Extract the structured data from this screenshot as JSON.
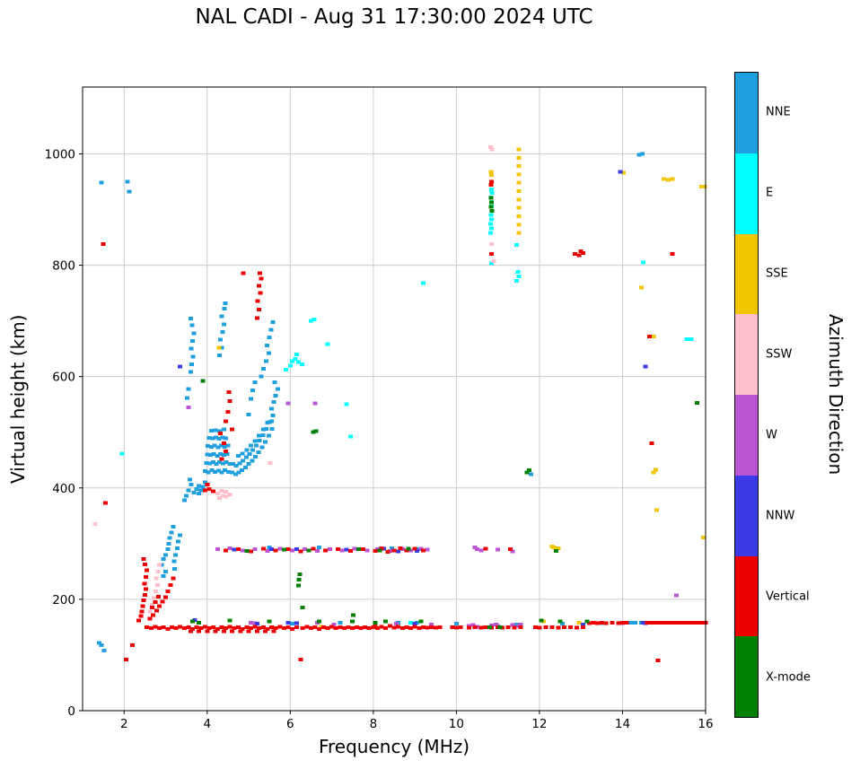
{
  "colorbar": {
    "label": "Azimuth Direction",
    "entries": [
      {
        "label": "NNE",
        "color": "#1f9fdd"
      },
      {
        "label": "E",
        "color": "#00ffff"
      },
      {
        "label": "SSE",
        "color": "#f2c500"
      },
      {
        "label": "SSW",
        "color": "#ffc0cb"
      },
      {
        "label": "W",
        "color": "#ba55d3"
      },
      {
        "label": "NNW",
        "color": "#3a3ae6"
      },
      {
        "label": "Vertical",
        "color": "#ee0000"
      },
      {
        "label": "X-mode",
        "color": "#008000"
      }
    ]
  },
  "chart_data": {
    "type": "scatter",
    "title": "NAL CADI - Aug 31 17:30:00 2024 UTC",
    "xlabel": "Frequency (MHz)",
    "ylabel": "Virtual height (km)",
    "xlim": [
      1,
      16
    ],
    "ylim": [
      0,
      1120
    ],
    "x_ticks": [
      2,
      4,
      6,
      8,
      10,
      12,
      14,
      16
    ],
    "y_ticks": [
      0,
      200,
      400,
      600,
      800,
      1000
    ],
    "grid": true,
    "legend_position": "right-colorbar",
    "marker": "square",
    "series": [
      {
        "name": "NNE",
        "color": "#1f9fdd",
        "pts": [
          1.45,
          948,
          2.08,
          950,
          2.12,
          932,
          1.4,
          122,
          1.52,
          108,
          1.45,
          118,
          2.9,
          262,
          2.95,
          272,
          3.0,
          280,
          3.05,
          290,
          3.08,
          300,
          3.1,
          310,
          3.14,
          320,
          3.18,
          330,
          3.2,
          268,
          3.24,
          280,
          3.28,
          292,
          3.3,
          304,
          3.34,
          315,
          3.22,
          255,
          3.0,
          250,
          2.95,
          242,
          3.45,
          378,
          3.5,
          386,
          3.55,
          396,
          3.62,
          406,
          3.68,
          392,
          3.58,
          415,
          3.75,
          398,
          3.8,
          404,
          3.85,
          396,
          3.9,
          402,
          3.95,
          410,
          3.8,
          390,
          3.95,
          430,
          4.03,
          428,
          4.11,
          432,
          4.19,
          429,
          4.27,
          431,
          4.35,
          428,
          4.43,
          432,
          4.51,
          429,
          3.98,
          445,
          4.06,
          444,
          4.14,
          446,
          4.22,
          443,
          4.3,
          446,
          4.38,
          444,
          4.46,
          446,
          4.54,
          443,
          4.0,
          460,
          4.08,
          459,
          4.16,
          461,
          4.24,
          458,
          4.32,
          461,
          4.4,
          459,
          4.48,
          461,
          4.02,
          475,
          4.1,
          474,
          4.18,
          476,
          4.26,
          473,
          4.34,
          476,
          4.42,
          474,
          4.5,
          476,
          4.05,
          490,
          4.13,
          489,
          4.21,
          491,
          4.29,
          488,
          4.37,
          491,
          4.45,
          489,
          4.1,
          503,
          4.2,
          504,
          4.3,
          502,
          4.4,
          505,
          4.6,
          428,
          4.68,
          425,
          4.76,
          428,
          4.84,
          432,
          4.92,
          437,
          5.0,
          443,
          5.08,
          449,
          5.16,
          456,
          5.24,
          464,
          5.32,
          473,
          5.4,
          483,
          5.48,
          494,
          5.56,
          506,
          4.62,
          443,
          4.7,
          440,
          4.78,
          444,
          4.86,
          449,
          4.94,
          455,
          5.02,
          461,
          5.1,
          468,
          5.18,
          476,
          5.26,
          485,
          5.34,
          495,
          5.42,
          506,
          5.5,
          518,
          5.58,
          530,
          4.75,
          458,
          4.85,
          462,
          4.95,
          468,
          5.05,
          476,
          5.15,
          484,
          5.25,
          494,
          5.35,
          505,
          5.45,
          517,
          5.55,
          542,
          5.6,
          554,
          5.65,
          566,
          5.7,
          578,
          5.62,
          590,
          5.55,
          520,
          5.0,
          532,
          5.05,
          560,
          5.1,
          575,
          5.15,
          590,
          5.3,
          600,
          5.35,
          614,
          5.42,
          628,
          5.48,
          642,
          5.44,
          656,
          5.5,
          670,
          5.54,
          684,
          5.58,
          698,
          3.6,
          608,
          3.63,
          622,
          3.66,
          636,
          3.62,
          650,
          3.65,
          664,
          3.68,
          678,
          3.64,
          692,
          3.6,
          704,
          3.55,
          578,
          3.52,
          562,
          4.3,
          638,
          4.35,
          652,
          4.32,
          666,
          4.37,
          680,
          4.4,
          694,
          4.35,
          708,
          4.41,
          722,
          4.44,
          732,
          6.05,
          156,
          7.2,
          158,
          8.6,
          158,
          9.05,
          158,
          10.0,
          156,
          11.45,
          155,
          12.55,
          156,
          13.5,
          157,
          14.2,
          158,
          14.3,
          158,
          14.45,
          158,
          5.5,
          293,
          6.7,
          293,
          8.45,
          292,
          9.1,
          290,
          14.4,
          998,
          14.48,
          1000,
          11.8,
          425
        ]
      },
      {
        "name": "E",
        "color": "#00ffff",
        "pts": [
          1.95,
          462,
          5.9,
          612,
          6.0,
          620,
          6.05,
          628,
          6.12,
          632,
          6.2,
          626,
          6.28,
          622,
          6.15,
          640,
          6.5,
          700,
          6.58,
          703,
          6.9,
          658,
          7.35,
          550,
          7.45,
          492,
          9.2,
          768,
          10.82,
          858,
          10.84,
          866,
          10.82,
          874,
          10.85,
          882,
          10.83,
          890,
          10.86,
          898,
          10.84,
          906,
          10.85,
          914,
          10.83,
          922,
          10.86,
          930,
          10.84,
          936,
          10.85,
          803,
          11.45,
          772,
          11.5,
          780,
          11.48,
          788,
          11.45,
          836,
          14.5,
          805,
          15.55,
          667,
          15.65,
          667,
          8.9,
          158
        ]
      },
      {
        "name": "SSE",
        "color": "#f2c500",
        "pts": [
          11.5,
          1008,
          11.5,
          993,
          11.5,
          978,
          11.5,
          963,
          11.5,
          948,
          11.5,
          933,
          11.5,
          918,
          11.5,
          903,
          11.5,
          888,
          11.5,
          873,
          11.5,
          858,
          10.85,
          962,
          10.83,
          968,
          14.02,
          966,
          14.45,
          760,
          14.75,
          428,
          14.8,
          433,
          14.82,
          360,
          15.0,
          955,
          15.1,
          953,
          15.2,
          955,
          15.9,
          941,
          15.98,
          941,
          15.95,
          311,
          12.3,
          295,
          12.35,
          293,
          12.45,
          292,
          12.1,
          160,
          12.95,
          158,
          6.75,
          151,
          4.28,
          652,
          14.75,
          672
        ]
      },
      {
        "name": "SSW",
        "color": "#ffc0cb",
        "pts": [
          2.62,
          178,
          2.68,
          190,
          2.72,
          202,
          2.76,
          214,
          2.8,
          226,
          2.77,
          238,
          2.82,
          250,
          2.85,
          262,
          4.25,
          390,
          4.3,
          382,
          4.38,
          386,
          4.46,
          384,
          4.54,
          388,
          4.35,
          395,
          4.45,
          393,
          5.52,
          445,
          10.82,
          1012,
          10.86,
          1008,
          10.84,
          838,
          10.9,
          807,
          1.3,
          335
        ]
      },
      {
        "name": "W",
        "color": "#ba55d3",
        "pts": [
          4.25,
          290,
          4.55,
          292,
          4.85,
          288,
          5.15,
          290,
          5.45,
          287,
          5.75,
          291,
          6.05,
          288,
          6.35,
          290,
          6.65,
          287,
          6.95,
          290,
          7.25,
          288,
          7.55,
          291,
          7.85,
          288,
          8.1,
          290,
          8.4,
          287,
          8.7,
          290,
          8.9,
          288,
          9.15,
          291,
          9.3,
          289,
          10.45,
          293,
          10.5,
          290,
          10.6,
          288,
          11.0,
          289,
          11.35,
          286,
          5.05,
          158,
          5.15,
          157,
          6.65,
          158,
          7.05,
          155,
          8.55,
          156,
          9.4,
          155,
          10.3,
          152,
          10.4,
          154,
          10.5,
          151,
          10.85,
          153,
          10.95,
          155,
          11.0,
          152,
          11.35,
          154,
          11.5,
          152,
          11.55,
          155,
          14.0,
          157,
          5.95,
          552,
          6.6,
          552,
          3.55,
          545,
          15.3,
          207
        ]
      },
      {
        "name": "NNW",
        "color": "#3a3ae6",
        "pts": [
          3.35,
          618,
          14.55,
          618,
          13.95,
          968,
          3.7,
          163,
          5.2,
          156,
          5.95,
          158,
          6.15,
          157,
          9.0,
          156,
          13.05,
          155,
          14.5,
          158,
          14.55,
          157,
          4.65,
          289,
          5.55,
          290,
          6.15,
          290,
          7.35,
          289,
          8.25,
          291,
          8.6,
          286,
          9.05,
          287
        ]
      },
      {
        "name": "Vertical",
        "color": "#ee0000",
        "pts": [
          2.55,
          150,
          2.65,
          148,
          2.75,
          151,
          2.85,
          148,
          2.95,
          150,
          3.05,
          147,
          3.15,
          150,
          3.25,
          148,
          3.35,
          151,
          3.45,
          148,
          3.55,
          150,
          3.65,
          147,
          3.75,
          150,
          3.85,
          148,
          3.95,
          151,
          4.05,
          148,
          4.15,
          150,
          4.25,
          147,
          4.35,
          150,
          4.45,
          148,
          4.55,
          151,
          4.65,
          148,
          4.75,
          150,
          4.85,
          147,
          4.95,
          150,
          5.05,
          148,
          5.15,
          151,
          5.25,
          148,
          5.35,
          150,
          5.45,
          147,
          5.55,
          150,
          5.65,
          148,
          5.75,
          151,
          5.85,
          148,
          5.95,
          150,
          6.05,
          147,
          6.15,
          150,
          6.3,
          148,
          6.4,
          151,
          6.5,
          148,
          6.6,
          150,
          6.7,
          147,
          6.8,
          150,
          6.9,
          148,
          7.0,
          151,
          7.1,
          148,
          7.2,
          150,
          7.3,
          148,
          7.4,
          150,
          7.5,
          148,
          7.6,
          150,
          7.7,
          148,
          7.8,
          150,
          7.9,
          148,
          3.6,
          143,
          3.8,
          143,
          4.0,
          143,
          4.2,
          143,
          4.4,
          143,
          4.6,
          143,
          4.8,
          143,
          5.0,
          143,
          5.2,
          143,
          5.4,
          143,
          5.6,
          143,
          8.0,
          150,
          8.05,
          153,
          8.1,
          148,
          8.2,
          151,
          8.3,
          148,
          8.4,
          152,
          8.5,
          149,
          8.6,
          151,
          8.7,
          148,
          8.8,
          150,
          8.9,
          148,
          9.0,
          151,
          9.1,
          148,
          9.2,
          150,
          9.3,
          149,
          9.4,
          150,
          9.5,
          149,
          9.6,
          150,
          9.9,
          150,
          10.0,
          149,
          10.1,
          150,
          10.3,
          149,
          10.45,
          150,
          10.6,
          149,
          10.7,
          150,
          10.85,
          149,
          11.0,
          150,
          11.1,
          149,
          11.25,
          150,
          11.4,
          149,
          11.55,
          150,
          11.9,
          150,
          12.0,
          149,
          12.15,
          150,
          12.3,
          150,
          12.45,
          149,
          12.6,
          150,
          12.75,
          150,
          12.9,
          149,
          13.05,
          150,
          13.2,
          157,
          13.3,
          158,
          13.4,
          157,
          13.5,
          158,
          13.6,
          157,
          13.75,
          158,
          13.9,
          157,
          14.0,
          158,
          14.1,
          158,
          14.6,
          158,
          14.7,
          158,
          14.8,
          158,
          14.9,
          158,
          15.0,
          158,
          15.1,
          158,
          15.2,
          158,
          15.3,
          158,
          15.4,
          158,
          15.5,
          158,
          15.6,
          158,
          15.7,
          158,
          15.8,
          158,
          15.9,
          158,
          16.0,
          158,
          2.35,
          162,
          2.4,
          170,
          2.43,
          178,
          2.45,
          188,
          2.47,
          198,
          2.5,
          208,
          2.52,
          218,
          2.49,
          228,
          2.52,
          240,
          2.55,
          252,
          2.5,
          263,
          2.47,
          272,
          2.62,
          165,
          2.7,
          172,
          2.78,
          180,
          2.85,
          188,
          2.92,
          196,
          3.0,
          204,
          3.05,
          214,
          3.12,
          226,
          3.18,
          238,
          2.68,
          185,
          2.75,
          195,
          2.83,
          205,
          2.05,
          92,
          2.2,
          118,
          6.25,
          92,
          14.85,
          90,
          1.5,
          838,
          1.55,
          373,
          3.95,
          396,
          4.05,
          398,
          4.15,
          394,
          4.0,
          406,
          4.35,
          452,
          4.45,
          466,
          4.4,
          480,
          4.32,
          498,
          4.45,
          520,
          4.5,
          537,
          4.55,
          556,
          4.52,
          572,
          4.6,
          505,
          5.2,
          705,
          5.25,
          720,
          5.22,
          736,
          5.28,
          750,
          5.25,
          763,
          5.3,
          776,
          5.27,
          786,
          4.87,
          786,
          4.45,
          288,
          4.75,
          290,
          5.05,
          286,
          5.35,
          291,
          5.65,
          288,
          5.95,
          290,
          6.25,
          286,
          6.55,
          291,
          6.85,
          288,
          7.15,
          290,
          7.45,
          287,
          7.75,
          290,
          8.05,
          287,
          8.2,
          292,
          8.35,
          285,
          8.5,
          288,
          8.65,
          292,
          8.8,
          288,
          9.0,
          291,
          9.2,
          288,
          10.7,
          291,
          11.3,
          290,
          12.85,
          820,
          12.95,
          818,
          13.05,
          822,
          13.0,
          825,
          14.65,
          672,
          14.7,
          480,
          15.2,
          820,
          10.83,
          944,
          10.85,
          950,
          10.84,
          820
        ]
      },
      {
        "name": "X-mode",
        "color": "#008000",
        "pts": [
          10.83,
          905,
          10.85,
          913,
          10.83,
          921,
          10.86,
          898,
          3.65,
          160,
          3.8,
          158,
          4.55,
          162,
          5.5,
          160,
          6.3,
          185,
          6.7,
          160,
          7.5,
          160,
          7.52,
          172,
          8.05,
          158,
          8.3,
          160,
          9.15,
          160,
          10.8,
          150,
          11.05,
          150,
          12.05,
          162,
          12.5,
          160,
          13.15,
          160,
          6.2,
          225,
          6.21,
          235,
          6.23,
          245,
          6.55,
          500,
          6.62,
          502,
          3.9,
          592,
          4.95,
          287,
          5.85,
          289,
          6.45,
          288,
          7.65,
          290,
          8.15,
          288,
          8.85,
          291,
          12.4,
          287,
          15.8,
          553,
          11.7,
          428,
          11.75,
          432
        ]
      }
    ]
  }
}
